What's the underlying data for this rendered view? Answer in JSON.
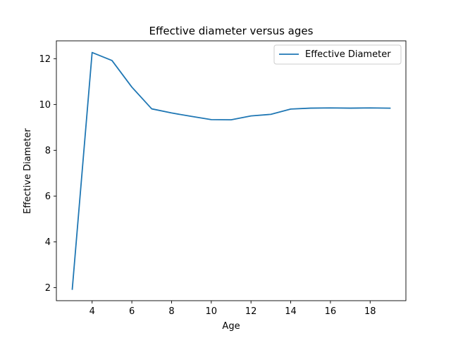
{
  "chart_data": {
    "type": "line",
    "title": "Effective diameter versus ages",
    "xlabel": "Age",
    "ylabel": "Effective Diameter",
    "xlim": [
      2.2,
      19.8
    ],
    "ylim": [
      1.43,
      12.78
    ],
    "xticks": [
      4,
      6,
      8,
      10,
      12,
      14,
      16,
      18
    ],
    "yticks": [
      2,
      4,
      6,
      8,
      10,
      12
    ],
    "grid": false,
    "legend_position": "top-right",
    "series": [
      {
        "name": "Effective Diameter",
        "color": "#1f77b4",
        "x": [
          3,
          4,
          5,
          6,
          7,
          8,
          9,
          10,
          11,
          12,
          13,
          14,
          15,
          16,
          17,
          18,
          19
        ],
        "y": [
          1.93,
          12.27,
          11.92,
          10.76,
          9.81,
          9.63,
          9.48,
          9.34,
          9.33,
          9.5,
          9.57,
          9.8,
          9.84,
          9.85,
          9.84,
          9.85,
          9.84
        ]
      }
    ]
  }
}
